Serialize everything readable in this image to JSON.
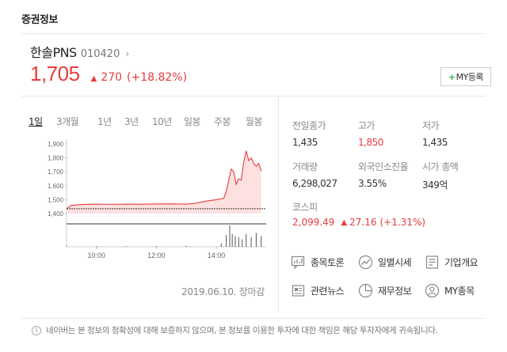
{
  "section_title": "증권정보",
  "stock": {
    "name": "한솔PNS",
    "code": "010420",
    "price": "1,705",
    "change_amount": "270",
    "change_percent": "(+18.82%)",
    "my_button": "MY등록",
    "direction_icon": "up-triangle-icon"
  },
  "period_tabs": [
    "1일",
    "3개월",
    "1년",
    "3년",
    "10년",
    "일봉",
    "주봉",
    "월봉"
  ],
  "active_tab": "1일",
  "chart_data": {
    "type": "line",
    "y_ticks": [
      "1,900",
      "1,800",
      "1,700",
      "1,600",
      "1,500",
      "1,400"
    ],
    "ylim": [
      1400,
      1900
    ],
    "x_ticks": [
      "10:00",
      "12:00",
      "14:00"
    ],
    "prev_close": 1435,
    "price_series": [
      {
        "time": "09:00",
        "value": 1435
      },
      {
        "time": "09:10",
        "value": 1460
      },
      {
        "time": "09:30",
        "value": 1465
      },
      {
        "time": "10:00",
        "value": 1468
      },
      {
        "time": "10:30",
        "value": 1466
      },
      {
        "time": "11:00",
        "value": 1468
      },
      {
        "time": "11:30",
        "value": 1467
      },
      {
        "time": "12:00",
        "value": 1469
      },
      {
        "time": "12:30",
        "value": 1470
      },
      {
        "time": "13:00",
        "value": 1468
      },
      {
        "time": "13:20",
        "value": 1475
      },
      {
        "time": "13:40",
        "value": 1490
      },
      {
        "time": "14:00",
        "value": 1500
      },
      {
        "time": "14:15",
        "value": 1510
      },
      {
        "time": "14:20",
        "value": 1560
      },
      {
        "time": "14:25",
        "value": 1640
      },
      {
        "time": "14:30",
        "value": 1720
      },
      {
        "time": "14:35",
        "value": 1700
      },
      {
        "time": "14:40",
        "value": 1610
      },
      {
        "time": "14:45",
        "value": 1650
      },
      {
        "time": "14:50",
        "value": 1640
      },
      {
        "time": "14:55",
        "value": 1770
      },
      {
        "time": "15:00",
        "value": 1850
      },
      {
        "time": "15:05",
        "value": 1780
      },
      {
        "time": "15:10",
        "value": 1800
      },
      {
        "time": "15:15",
        "value": 1760
      },
      {
        "time": "15:20",
        "value": 1740
      },
      {
        "time": "15:25",
        "value": 1760
      },
      {
        "time": "15:30",
        "value": 1705
      }
    ],
    "volume_series": [
      {
        "time": "09:00",
        "value": 0.05
      },
      {
        "time": "10:00",
        "value": 0.03
      },
      {
        "time": "11:00",
        "value": 0.03
      },
      {
        "time": "12:00",
        "value": 0.03
      },
      {
        "time": "13:00",
        "value": 0.05
      },
      {
        "time": "14:10",
        "value": 0.15
      },
      {
        "time": "14:20",
        "value": 0.55
      },
      {
        "time": "14:27",
        "value": 1.0
      },
      {
        "time": "14:32",
        "value": 0.6
      },
      {
        "time": "14:38",
        "value": 0.5
      },
      {
        "time": "14:45",
        "value": 0.45
      },
      {
        "time": "14:52",
        "value": 0.35
      },
      {
        "time": "15:00",
        "value": 0.6
      },
      {
        "time": "15:10",
        "value": 0.45
      },
      {
        "time": "15:20",
        "value": 0.65
      },
      {
        "time": "15:30",
        "value": 0.5
      }
    ],
    "colors": {
      "line": "#e73d3d",
      "fill": "#fde0e0",
      "baseline": "#333333",
      "volume": "#555555"
    }
  },
  "chart_date": "2019.06.10. 장마감",
  "stats": [
    {
      "label": "전일종가",
      "value": "1,435",
      "red": false
    },
    {
      "label": "고가",
      "value": "1,850",
      "red": true
    },
    {
      "label": "저가",
      "value": "1,435",
      "red": false
    },
    {
      "label": "거래량",
      "value": "6,298,027",
      "red": false
    },
    {
      "label": "외국인소진율",
      "value": "3.55%",
      "red": false
    },
    {
      "label": "시가 총액",
      "value": "349억",
      "red": false
    }
  ],
  "index": {
    "label": "코스피",
    "value": "2,099.49",
    "change": "27.16",
    "change_percent": "(+1.31%)"
  },
  "links": [
    {
      "label": "종목토론",
      "icon": "discussion-icon"
    },
    {
      "label": "일별시세",
      "icon": "trend-icon"
    },
    {
      "label": "기업개요",
      "icon": "company-icon"
    },
    {
      "label": "관련뉴스",
      "icon": "news-icon"
    },
    {
      "label": "재무정보",
      "icon": "pie-icon"
    },
    {
      "label": "MY종목",
      "icon": "person-icon"
    }
  ],
  "disclaimer": "네이버는 본 정보의 정확성에 대해 보증하지 않으며, 본 정보를 이용한 투자에 대한 책임은 해당 투자자에게 귀속됩니다."
}
